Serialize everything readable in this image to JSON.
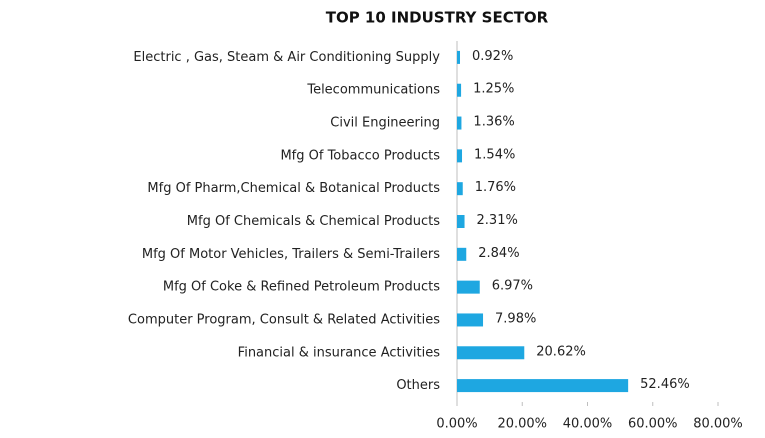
{
  "chart_data": {
    "type": "barh",
    "title": "TOP 10 INDUSTRY SECTOR",
    "categories": [
      "Electric , Gas, Steam & Air Conditioning Supply",
      "Telecommunications",
      "Civil Engineering",
      "Mfg Of Tobacco Products",
      "Mfg Of Pharm,Chemical & Botanical Products",
      "Mfg Of Chemicals & Chemical Products",
      "Mfg Of Motor Vehicles, Trailers & Semi-Trailers",
      "Mfg Of Coke & Refined Petroleum Products",
      "Computer Program, Consult & Related Activities",
      "Financial & insurance Activities",
      "Others"
    ],
    "values": [
      0.92,
      1.25,
      1.36,
      1.54,
      1.76,
      2.31,
      2.84,
      6.97,
      7.98,
      20.62,
      52.46
    ],
    "value_labels": [
      "0.92%",
      "1.25%",
      "1.36%",
      "1.54%",
      "1.76%",
      "2.31%",
      "2.84%",
      "6.97%",
      "7.98%",
      "20.62%",
      "52.46%"
    ],
    "color": "#1ea7e1",
    "xlim": [
      0,
      80
    ],
    "xticks": [
      {
        "value": 0,
        "label": "0.00%"
      },
      {
        "value": 20,
        "label": "20.00%"
      },
      {
        "value": 40,
        "label": "40.00%"
      },
      {
        "value": 60,
        "label": "60.00%"
      },
      {
        "value": 80,
        "label": "80.00%"
      }
    ]
  }
}
